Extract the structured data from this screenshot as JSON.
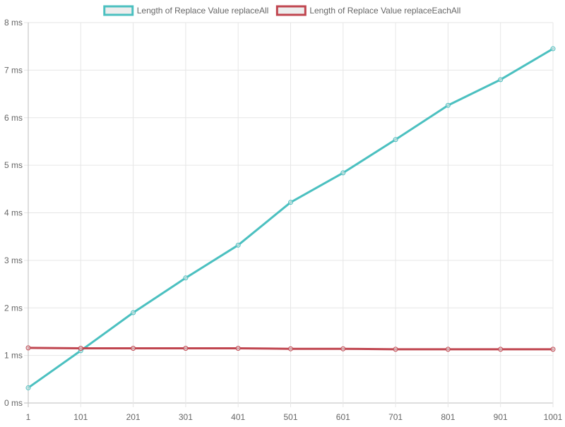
{
  "chart_data": {
    "type": "line",
    "title": "",
    "xlabel": "",
    "ylabel": "",
    "categories": [
      "1",
      "101",
      "201",
      "301",
      "401",
      "501",
      "601",
      "701",
      "801",
      "901",
      "1001"
    ],
    "ylim": [
      0,
      8
    ],
    "y_ticks": [
      0,
      1,
      2,
      3,
      4,
      5,
      6,
      7,
      8
    ],
    "y_tick_labels": [
      "0 ms",
      "1 ms",
      "2 ms",
      "3 ms",
      "4 ms",
      "5 ms",
      "6 ms",
      "7 ms",
      "8 ms"
    ],
    "grid": true,
    "legend_position": "top-center",
    "series": [
      {
        "name": "Length of Replace Value replaceAll",
        "color": "#4bc0c0",
        "values": [
          0.32,
          1.1,
          1.9,
          2.63,
          3.32,
          4.22,
          4.84,
          5.54,
          6.26,
          6.8,
          7.45
        ]
      },
      {
        "name": "Length of Replace Value replaceEachAll",
        "color": "#c0454f",
        "values": [
          1.16,
          1.15,
          1.15,
          1.15,
          1.15,
          1.14,
          1.14,
          1.13,
          1.13,
          1.13,
          1.13
        ]
      }
    ]
  }
}
